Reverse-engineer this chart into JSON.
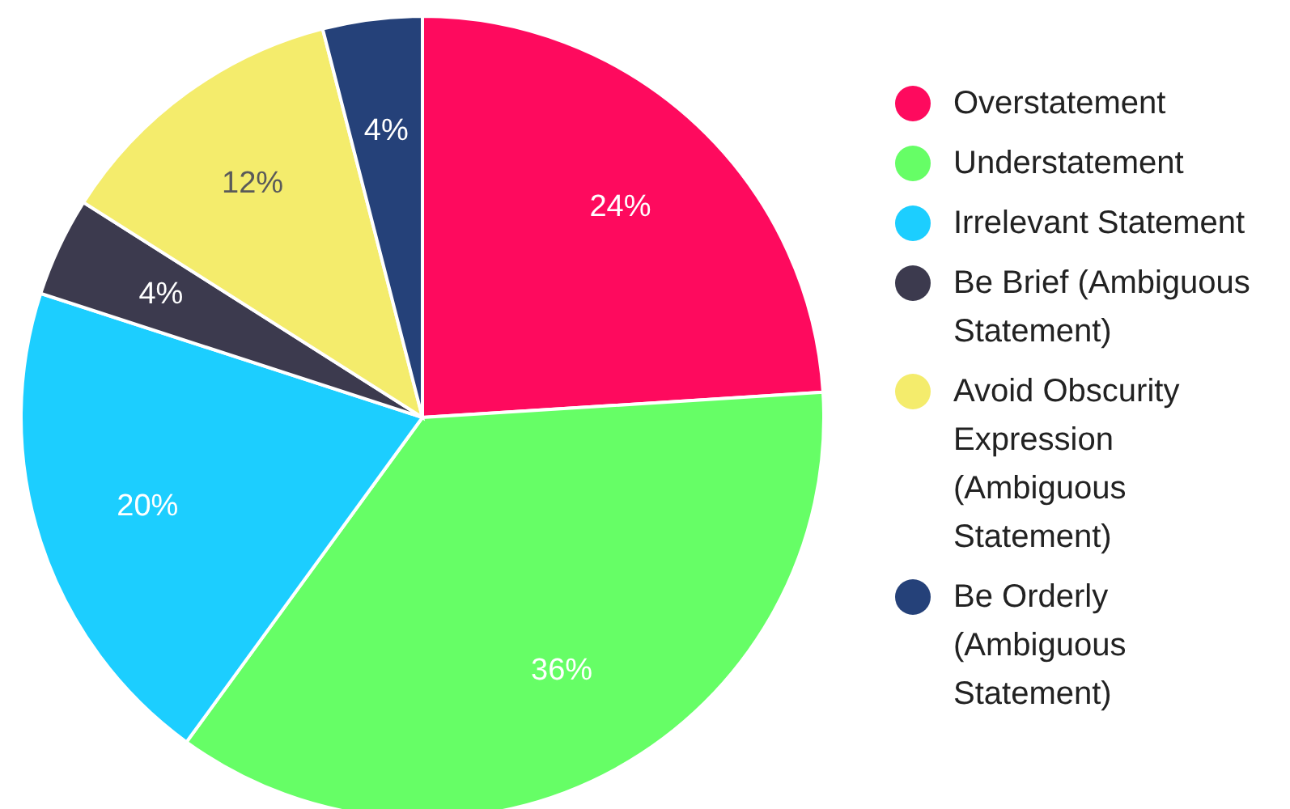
{
  "chart_data": {
    "type": "pie",
    "categories": [
      "Overstatement",
      "Understatement",
      "Irrelevant Statement",
      "Be Brief (Ambiguous Statement)",
      "Avoid Obscurity Expression (Ambiguous Statement)",
      "Be Orderly (Ambiguous Statement)"
    ],
    "values": [
      24,
      36,
      20,
      4,
      12,
      4
    ],
    "value_labels": [
      "24%",
      "36%",
      "20%",
      "4%",
      "12%",
      "4%"
    ],
    "colors": [
      "#fe0a5e",
      "#66fe66",
      "#1cceff",
      "#3c3a4e",
      "#f4ec6c",
      "#254179"
    ],
    "legend": "right"
  }
}
